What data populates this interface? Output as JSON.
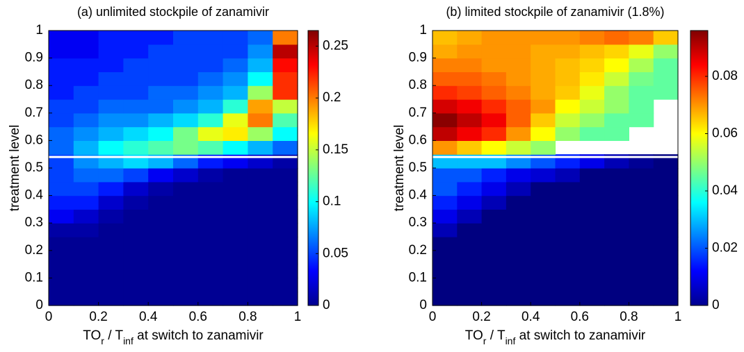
{
  "chart_data": [
    {
      "type": "heatmap",
      "title": "(a) unlimited stockpile of zanamivir",
      "ylabel": "treatment level",
      "xlabel": [
        "TO",
        "r",
        " / T",
        "inf",
        " at switch to zanamivir"
      ],
      "colormap": "jet",
      "xlim": [
        0,
        1
      ],
      "ylim": [
        0,
        1
      ],
      "clim": [
        0,
        0.265
      ],
      "xticks": [
        0,
        0.2,
        0.4,
        0.6,
        0.8,
        1
      ],
      "yticks": [
        0,
        0.1,
        0.2,
        0.3,
        0.4,
        0.5,
        0.6,
        0.7,
        0.8,
        0.9,
        1
      ],
      "cticks": [
        0,
        0.05,
        0.1,
        0.15,
        0.2,
        0.25
      ],
      "hline": 0.54,
      "x": [
        0.05,
        0.15,
        0.25,
        0.35,
        0.45,
        0.55,
        0.65,
        0.75,
        0.85,
        0.95
      ],
      "y": [
        0.025,
        0.075,
        0.125,
        0.175,
        0.225,
        0.275,
        0.325,
        0.375,
        0.425,
        0.475,
        0.525,
        0.575,
        0.625,
        0.675,
        0.725,
        0.775,
        0.825,
        0.875,
        0.925,
        0.975
      ],
      "z": [
        [
          0.005,
          0.005,
          0.005,
          0.005,
          0.005,
          0.005,
          0.005,
          0.005,
          0.005,
          0.005
        ],
        [
          0.005,
          0.005,
          0.005,
          0.005,
          0.005,
          0.005,
          0.005,
          0.005,
          0.005,
          0.005
        ],
        [
          0.005,
          0.005,
          0.005,
          0.005,
          0.005,
          0.005,
          0.005,
          0.005,
          0.005,
          0.005
        ],
        [
          0.005,
          0.005,
          0.005,
          0.005,
          0.005,
          0.005,
          0.005,
          0.005,
          0.005,
          0.005
        ],
        [
          0.005,
          0.005,
          0.005,
          0.005,
          0.005,
          0.005,
          0.005,
          0.005,
          0.005,
          0.005
        ],
        [
          0.01,
          0.01,
          0.005,
          0.005,
          0.005,
          0.005,
          0.005,
          0.005,
          0.005,
          0.005
        ],
        [
          0.03,
          0.02,
          0.01,
          0.005,
          0.005,
          0.005,
          0.005,
          0.005,
          0.005,
          0.005
        ],
        [
          0.04,
          0.04,
          0.02,
          0.01,
          0.005,
          0.005,
          0.005,
          0.005,
          0.005,
          0.005
        ],
        [
          0.05,
          0.05,
          0.04,
          0.02,
          0.01,
          0.005,
          0.005,
          0.005,
          0.005,
          0.005
        ],
        [
          0.05,
          0.06,
          0.06,
          0.05,
          0.03,
          0.02,
          0.01,
          0.005,
          0.005,
          0.005
        ],
        [
          0.05,
          0.07,
          0.08,
          0.09,
          0.08,
          0.06,
          0.04,
          0.03,
          0.02,
          0.01
        ],
        [
          0.06,
          0.08,
          0.1,
          0.11,
          0.12,
          0.13,
          0.12,
          0.1,
          0.08,
          0.06
        ],
        [
          0.06,
          0.07,
          0.08,
          0.09,
          0.1,
          0.13,
          0.16,
          0.17,
          0.14,
          0.1
        ],
        [
          0.05,
          0.06,
          0.07,
          0.07,
          0.08,
          0.09,
          0.11,
          0.16,
          0.2,
          0.12
        ],
        [
          0.05,
          0.05,
          0.06,
          0.06,
          0.06,
          0.07,
          0.08,
          0.11,
          0.19,
          0.15
        ],
        [
          0.04,
          0.05,
          0.05,
          0.05,
          0.06,
          0.06,
          0.07,
          0.08,
          0.14,
          0.22
        ],
        [
          0.04,
          0.04,
          0.05,
          0.05,
          0.05,
          0.05,
          0.06,
          0.07,
          0.1,
          0.22
        ],
        [
          0.04,
          0.04,
          0.04,
          0.05,
          0.05,
          0.05,
          0.05,
          0.06,
          0.08,
          0.23
        ],
        [
          0.03,
          0.03,
          0.04,
          0.04,
          0.05,
          0.05,
          0.05,
          0.05,
          0.07,
          0.25
        ],
        [
          0.03,
          0.03,
          0.04,
          0.04,
          0.04,
          0.05,
          0.05,
          0.05,
          0.06,
          0.2
        ]
      ]
    },
    {
      "type": "heatmap",
      "title": "(b) limited stockpile of zanamivir (1.8%)",
      "ylabel": "treatment level",
      "xlabel": [
        "TO",
        "r",
        " / T",
        "inf",
        " at switch to zanamivir"
      ],
      "colormap": "jet",
      "xlim": [
        0,
        1
      ],
      "ylim": [
        0,
        1
      ],
      "clim": [
        0,
        0.096
      ],
      "xticks": [
        0,
        0.2,
        0.4,
        0.6,
        0.8,
        1
      ],
      "yticks": [
        0,
        0.1,
        0.2,
        0.3,
        0.4,
        0.5,
        0.6,
        0.7,
        0.8,
        0.9,
        1
      ],
      "cticks": [
        0,
        0.02,
        0.04,
        0.06,
        0.08
      ],
      "hline": 0.54,
      "x": [
        0.05,
        0.15,
        0.25,
        0.35,
        0.45,
        0.55,
        0.65,
        0.75,
        0.85,
        0.95
      ],
      "y": [
        0.025,
        0.075,
        0.125,
        0.175,
        0.225,
        0.275,
        0.325,
        0.375,
        0.425,
        0.475,
        0.525,
        0.575,
        0.625,
        0.675,
        0.725,
        0.775,
        0.825,
        0.875,
        0.925,
        0.975
      ],
      "z": [
        [
          0,
          0,
          0,
          0,
          0,
          0,
          0,
          0,
          0,
          0
        ],
        [
          0,
          0,
          0,
          0,
          0,
          0,
          0,
          0,
          0,
          0
        ],
        [
          0,
          0,
          0,
          0,
          0,
          0,
          0,
          0,
          0,
          0
        ],
        [
          0,
          0,
          0,
          0,
          0,
          0,
          0,
          0,
          0,
          0
        ],
        [
          0,
          0,
          0,
          0,
          0,
          0,
          0,
          0,
          0,
          0
        ],
        [
          0.005,
          0,
          0,
          0,
          0,
          0,
          0,
          0,
          0,
          0
        ],
        [
          0.01,
          0.005,
          0,
          0,
          0,
          0,
          0,
          0,
          0,
          0
        ],
        [
          0.015,
          0.01,
          0.005,
          0,
          0,
          0,
          0,
          0,
          0,
          0
        ],
        [
          0.02,
          0.015,
          0.01,
          0.005,
          0,
          0,
          0,
          0,
          0,
          0
        ],
        [
          0.02,
          0.02,
          0.015,
          0.01,
          0.008,
          0.005,
          0,
          0,
          0,
          0
        ],
        [
          0.03,
          0.03,
          0.03,
          0.025,
          0.02,
          0.015,
          0.01,
          0.005,
          0.002,
          0
        ],
        [
          0.07,
          0.065,
          0.06,
          0.055,
          0.05,
          null,
          null,
          null,
          null,
          null
        ],
        [
          0.09,
          0.085,
          0.08,
          0.07,
          0.06,
          0.05,
          0.045,
          0.045,
          null,
          null
        ],
        [
          0.095,
          0.09,
          0.085,
          0.075,
          0.065,
          0.055,
          0.05,
          0.045,
          0.045,
          null
        ],
        [
          0.088,
          0.085,
          0.08,
          0.075,
          0.07,
          0.06,
          0.055,
          0.05,
          0.045,
          null
        ],
        [
          0.08,
          0.078,
          0.075,
          0.072,
          0.068,
          0.065,
          0.058,
          0.05,
          0.045,
          0.045
        ],
        [
          0.075,
          0.075,
          0.073,
          0.07,
          0.068,
          0.066,
          0.062,
          0.055,
          0.047,
          0.045
        ],
        [
          0.072,
          0.072,
          0.07,
          0.07,
          0.068,
          0.066,
          0.064,
          0.06,
          0.052,
          0.045
        ],
        [
          0.068,
          0.07,
          0.07,
          0.07,
          0.068,
          0.068,
          0.066,
          0.064,
          0.058,
          0.05
        ],
        [
          0.066,
          0.068,
          0.07,
          0.07,
          0.07,
          0.07,
          0.072,
          0.074,
          0.072,
          0.065
        ]
      ]
    }
  ]
}
